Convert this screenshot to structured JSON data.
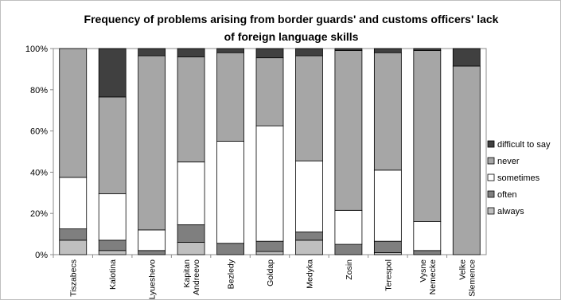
{
  "chart_data": {
    "type": "bar",
    "stacked": true,
    "title_lines": [
      "Frequency of problems arising from border guards' and customs officers' lack",
      "of foreign  language skills"
    ],
    "categories": [
      "Tiszabecs",
      "Kalotina",
      "Lyueshevo",
      "Kapitan Andreevo",
      "Bezledy",
      "Goldap",
      "Medyka",
      "Zosin",
      "Terespol",
      "Vysne Nemecke",
      "Velke Slemence"
    ],
    "category_lines": [
      [
        "Tiszabecs"
      ],
      [
        "Kalotina"
      ],
      [
        "Lyueshevo"
      ],
      [
        "Kapitan",
        "Andreevo"
      ],
      [
        "Bezledy"
      ],
      [
        "Goldap"
      ],
      [
        "Medyka"
      ],
      [
        "Zosin"
      ],
      [
        "Terespol"
      ],
      [
        "Vysne",
        "Nemecke"
      ],
      [
        "Velke",
        "Slemence"
      ]
    ],
    "series": [
      {
        "name": "always",
        "color": "#bfbfbf",
        "values": [
          7,
          2,
          0,
          6,
          0,
          1.5,
          7,
          0,
          1,
          0,
          0
        ]
      },
      {
        "name": "often",
        "color": "#7f7f7f",
        "values": [
          5.5,
          5,
          2,
          8.5,
          5.5,
          5,
          4,
          5,
          5.5,
          2,
          0
        ]
      },
      {
        "name": "sometimes",
        "color": "#ffffff",
        "values": [
          25,
          22.5,
          10,
          30.5,
          49.5,
          56,
          34.5,
          16.5,
          34.5,
          14,
          0
        ]
      },
      {
        "name": "never",
        "color": "#a6a6a6",
        "values": [
          62.5,
          47,
          84.5,
          51,
          43,
          33,
          51,
          77.5,
          57,
          83,
          91.5
        ]
      },
      {
        "name": "difficult to say",
        "color": "#404040",
        "values": [
          0,
          23.5,
          3.5,
          4,
          2,
          4.5,
          3.5,
          1,
          2,
          1,
          8.5
        ]
      }
    ],
    "ylim": [
      0,
      100
    ],
    "yticks": [
      "0%",
      "20%",
      "40%",
      "60%",
      "80%",
      "100%"
    ],
    "legend_order": [
      "difficult to say",
      "never",
      "sometimes",
      "often",
      "always"
    ],
    "legend_position": "right",
    "grid": false
  }
}
